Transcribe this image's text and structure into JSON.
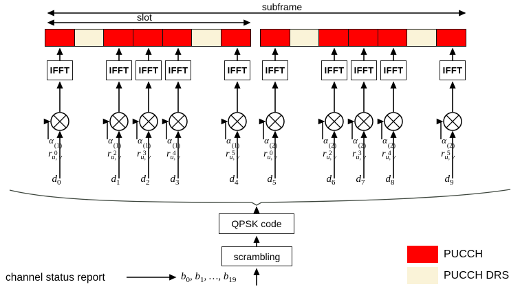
{
  "diagram": {
    "subframe_label": "subframe",
    "slot_label": "slot",
    "ifft_label": "IFFT",
    "qpsk_label": "QPSK code",
    "scrambling_label": "scrambling",
    "input_label": "channel status report",
    "alpha_symbol": "α",
    "r_symbol": "r",
    "r_subscript": "u, v",
    "d_symbol": "d",
    "slot1_blocks": [
      "pucch",
      "drs",
      "pucch",
      "pucch",
      "pucch",
      "drs",
      "pucch"
    ],
    "slot2_blocks": [
      "pucch",
      "drs",
      "pucch",
      "pucch",
      "pucch",
      "drs",
      "pucch"
    ],
    "chains": [
      {
        "alpha_sub": "0",
        "alpha_sup": "(1)",
        "d_sub": "0"
      },
      {
        "alpha_sub": "2",
        "alpha_sup": "(1)",
        "d_sub": "1"
      },
      {
        "alpha_sub": "3",
        "alpha_sup": "(1)",
        "d_sub": "2"
      },
      {
        "alpha_sub": "4",
        "alpha_sup": "(1)",
        "d_sub": "3"
      },
      {
        "alpha_sub": "5",
        "alpha_sup": "(1)",
        "d_sub": "4"
      },
      {
        "alpha_sub": "0",
        "alpha_sup": "(2)",
        "d_sub": "5"
      },
      {
        "alpha_sub": "2",
        "alpha_sup": "(2)",
        "d_sub": "6"
      },
      {
        "alpha_sub": "3",
        "alpha_sup": "(2)",
        "d_sub": "7"
      },
      {
        "alpha_sub": "4",
        "alpha_sup": "(2)",
        "d_sub": "8"
      },
      {
        "alpha_sub": "5",
        "alpha_sup": "(2)",
        "d_sub": "9"
      }
    ],
    "bits": {
      "separator": ", ",
      "segments": [
        {
          "t": "b",
          "sub": "0"
        },
        {
          "t": "b",
          "sub": "1"
        },
        {
          "t": "…"
        },
        {
          "t": "b",
          "sub": "19"
        }
      ]
    },
    "legend": [
      {
        "label": "PUCCH",
        "type": "pucch",
        "color": "#FF0000"
      },
      {
        "label": "PUCCH DRS",
        "type": "drs",
        "color": "#FAF3D8"
      }
    ],
    "colors": {
      "pucch": "#FF0000",
      "drs": "#FAF3D8",
      "line": "#000000",
      "brace": "#3d463d"
    }
  }
}
